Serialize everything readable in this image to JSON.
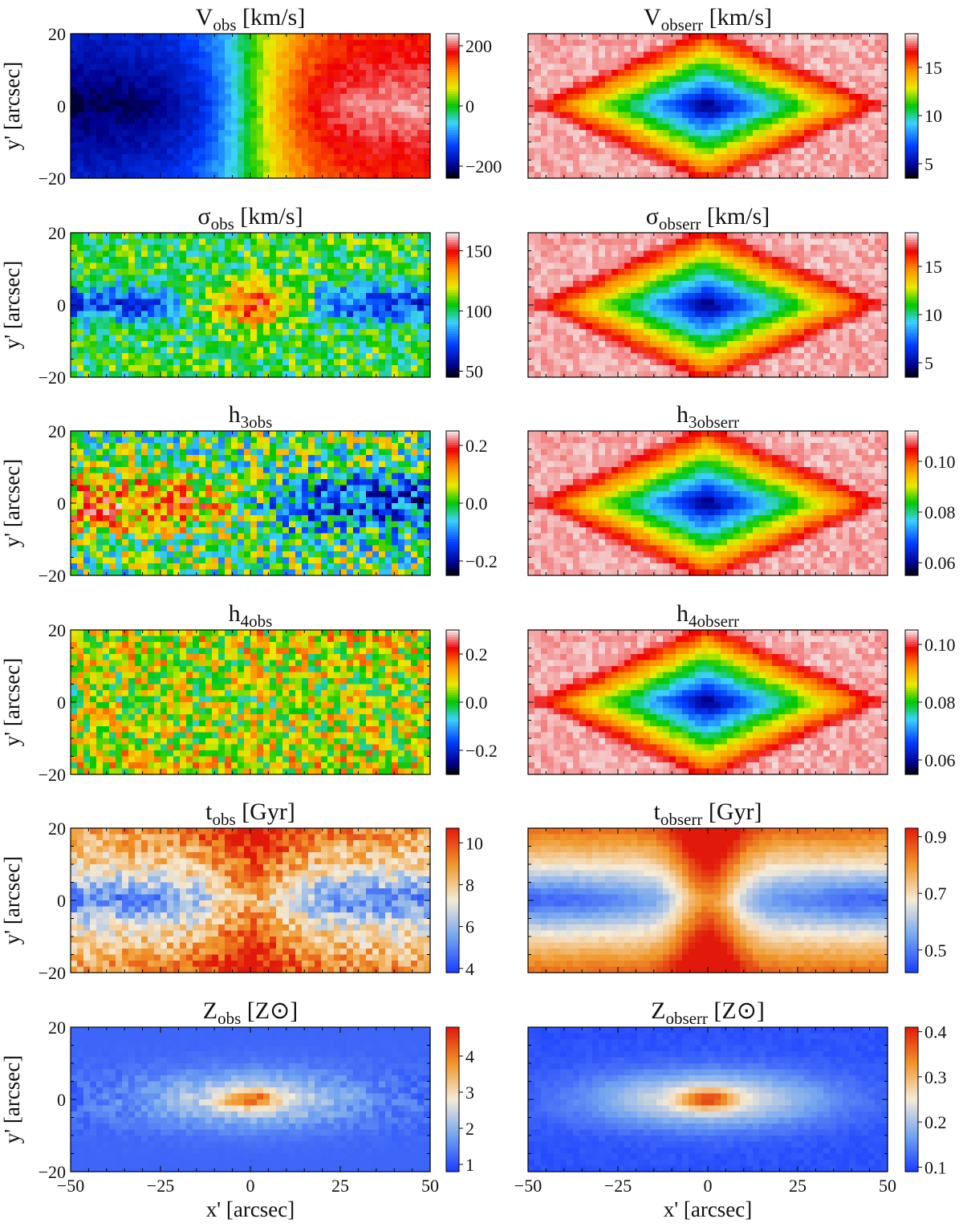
{
  "figure": {
    "shared_x_axis": {
      "label": "x' [arcsec]",
      "ticks": [
        -50,
        -25,
        0,
        25,
        50
      ],
      "tick_labels": [
        "−50",
        "−25",
        "0",
        "25",
        "50"
      ],
      "range": [
        -50,
        50
      ]
    },
    "shared_y_axis": {
      "label": "y' [arcsec]",
      "ticks": [
        -20,
        0,
        20
      ],
      "tick_labels": [
        "−20",
        "0",
        "20"
      ],
      "range": [
        -20,
        20
      ]
    }
  },
  "chart_data": [
    {
      "type": "heatmap",
      "id": "v_obs",
      "title_main": "V",
      "title_sub": "obs",
      "title_rest": " [km/s]",
      "colormap": "jet_spectral",
      "clim": [
        -240,
        240
      ],
      "colorbar_ticks": [
        200,
        0,
        -200
      ],
      "colorbar_labels": [
        "200",
        "0",
        "−200"
      ],
      "pattern": "rotation",
      "xlabel": "",
      "ylabel": "y' [arcsec]"
    },
    {
      "type": "heatmap",
      "id": "v_obserr",
      "title_main": "V",
      "title_sub": "obserr",
      "title_rest": " [km/s]",
      "colormap": "jet_spectral",
      "clim": [
        3.5,
        18.5
      ],
      "colorbar_ticks": [
        15,
        10,
        5
      ],
      "colorbar_labels": [
        "15",
        "10",
        "5"
      ],
      "pattern": "error_diamond",
      "xlabel": "",
      "ylabel": ""
    },
    {
      "type": "heatmap",
      "id": "sigma_obs",
      "title_main": "σ",
      "title_sub": "obs",
      "title_rest": " [km/s]",
      "colormap": "jet_spectral",
      "clim": [
        45,
        165
      ],
      "colorbar_ticks": [
        150,
        100,
        50
      ],
      "colorbar_labels": [
        "150",
        "100",
        "50"
      ],
      "pattern": "dispersion",
      "xlabel": "",
      "ylabel": "y' [arcsec]"
    },
    {
      "type": "heatmap",
      "id": "sigma_obserr",
      "title_main": "σ",
      "title_sub": "obserr",
      "title_rest": " [km/s]",
      "colormap": "jet_spectral",
      "clim": [
        3.5,
        18.5
      ],
      "colorbar_ticks": [
        15,
        10,
        5
      ],
      "colorbar_labels": [
        "15",
        "10",
        "5"
      ],
      "pattern": "error_diamond",
      "xlabel": "",
      "ylabel": ""
    },
    {
      "type": "heatmap",
      "id": "h3_obs",
      "title_main": "h",
      "title_sub": "3obs",
      "title_rest": "",
      "colormap": "jet_spectral",
      "clim": [
        -0.25,
        0.25
      ],
      "colorbar_ticks": [
        0.2,
        0.0,
        -0.2
      ],
      "colorbar_labels": [
        "0.2",
        "0.0",
        "−0.2"
      ],
      "pattern": "h3",
      "xlabel": "",
      "ylabel": "y' [arcsec]"
    },
    {
      "type": "heatmap",
      "id": "h3_obserr",
      "title_main": "h",
      "title_sub": "3obserr",
      "title_rest": "",
      "colormap": "jet_spectral",
      "clim": [
        0.055,
        0.112
      ],
      "colorbar_ticks": [
        0.1,
        0.08,
        0.06
      ],
      "colorbar_labels": [
        "0.10",
        "0.08",
        "0.06"
      ],
      "pattern": "error_diamond",
      "xlabel": "",
      "ylabel": ""
    },
    {
      "type": "heatmap",
      "id": "h4_obs",
      "title_main": "h",
      "title_sub": "4obs",
      "title_rest": "",
      "colormap": "jet_spectral",
      "clim": [
        -0.3,
        0.3
      ],
      "colorbar_ticks": [
        0.2,
        0.0,
        -0.2
      ],
      "colorbar_labels": [
        "0.2",
        "0.0",
        "−0.2"
      ],
      "pattern": "h4",
      "xlabel": "",
      "ylabel": "y' [arcsec]"
    },
    {
      "type": "heatmap",
      "id": "h4_obserr",
      "title_main": "h",
      "title_sub": "4obserr",
      "title_rest": "",
      "colormap": "jet_spectral",
      "clim": [
        0.055,
        0.105
      ],
      "colorbar_ticks": [
        0.1,
        0.08,
        0.06
      ],
      "colorbar_labels": [
        "0.10",
        "0.08",
        "0.06"
      ],
      "pattern": "error_diamond",
      "xlabel": "",
      "ylabel": ""
    },
    {
      "type": "heatmap",
      "id": "t_obs",
      "title_main": "t",
      "title_sub": "obs",
      "title_rest": " [Gyr]",
      "colormap": "coolwarm",
      "clim": [
        3.8,
        10.7
      ],
      "colorbar_ticks": [
        10,
        8,
        6,
        4
      ],
      "colorbar_labels": [
        "10",
        "8",
        "6",
        "4"
      ],
      "pattern": "age",
      "xlabel": "",
      "ylabel": "y' [arcsec]"
    },
    {
      "type": "heatmap",
      "id": "t_obserr",
      "title_main": "t",
      "title_sub": "obserr",
      "title_rest": " [Gyr]",
      "colormap": "coolwarm",
      "clim": [
        0.42,
        0.93
      ],
      "colorbar_ticks": [
        0.9,
        0.7,
        0.5
      ],
      "colorbar_labels": [
        "0.9",
        "0.7",
        "0.5"
      ],
      "pattern": "age_err",
      "xlabel": "",
      "ylabel": ""
    },
    {
      "type": "heatmap",
      "id": "z_obs",
      "title_main": "Z",
      "title_sub": "obs",
      "title_rest": " [Z⊙]",
      "colormap": "coolwarm",
      "clim": [
        0.8,
        4.8
      ],
      "colorbar_ticks": [
        4,
        3,
        2,
        1
      ],
      "colorbar_labels": [
        "4",
        "3",
        "2",
        "1"
      ],
      "pattern": "metal",
      "xlabel": "x' [arcsec]",
      "ylabel": "y' [arcsec]"
    },
    {
      "type": "heatmap",
      "id": "z_obserr",
      "title_main": "Z",
      "title_sub": "obserr",
      "title_rest": " [Z⊙]",
      "colormap": "coolwarm",
      "clim": [
        0.09,
        0.41
      ],
      "colorbar_ticks": [
        0.4,
        0.3,
        0.2,
        0.1
      ],
      "colorbar_labels": [
        "0.4",
        "0.3",
        "0.2",
        "0.1"
      ],
      "pattern": "metal_err",
      "xlabel": "x' [arcsec]",
      "ylabel": ""
    }
  ]
}
